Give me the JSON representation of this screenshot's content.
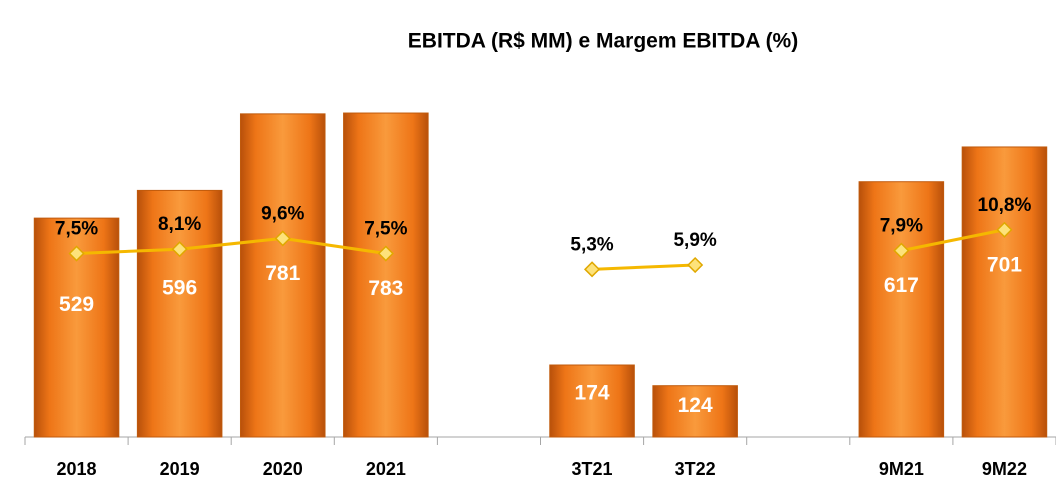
{
  "chart_data": {
    "type": "bar",
    "title": "EBITDA (R$ MM) e  Margem EBITDA (%)",
    "categories": [
      "2018",
      "2019",
      "2020",
      "2021",
      null,
      "3T21",
      "3T22",
      null,
      "9M21",
      "9M22"
    ],
    "ylim": [
      0,
      800
    ],
    "y2lim": [
      -18,
      28
    ],
    "series": [
      {
        "color": "#ee7517",
        "values": [
          529,
          596,
          781,
          783,
          null,
          174,
          124,
          null,
          617,
          701
        ]
      },
      {
        "type": "line",
        "axis": "y2",
        "color": "#f5b800",
        "values": [
          7.5,
          8.1,
          9.6,
          7.5,
          null,
          5.3,
          5.9,
          null,
          7.9,
          10.8
        ],
        "value_labels": [
          "7,5%",
          "8,1%",
          "9,6%",
          "7,5%",
          null,
          "5,3%",
          "5,9%",
          null,
          "7,9%",
          "10,8%"
        ]
      }
    ]
  }
}
